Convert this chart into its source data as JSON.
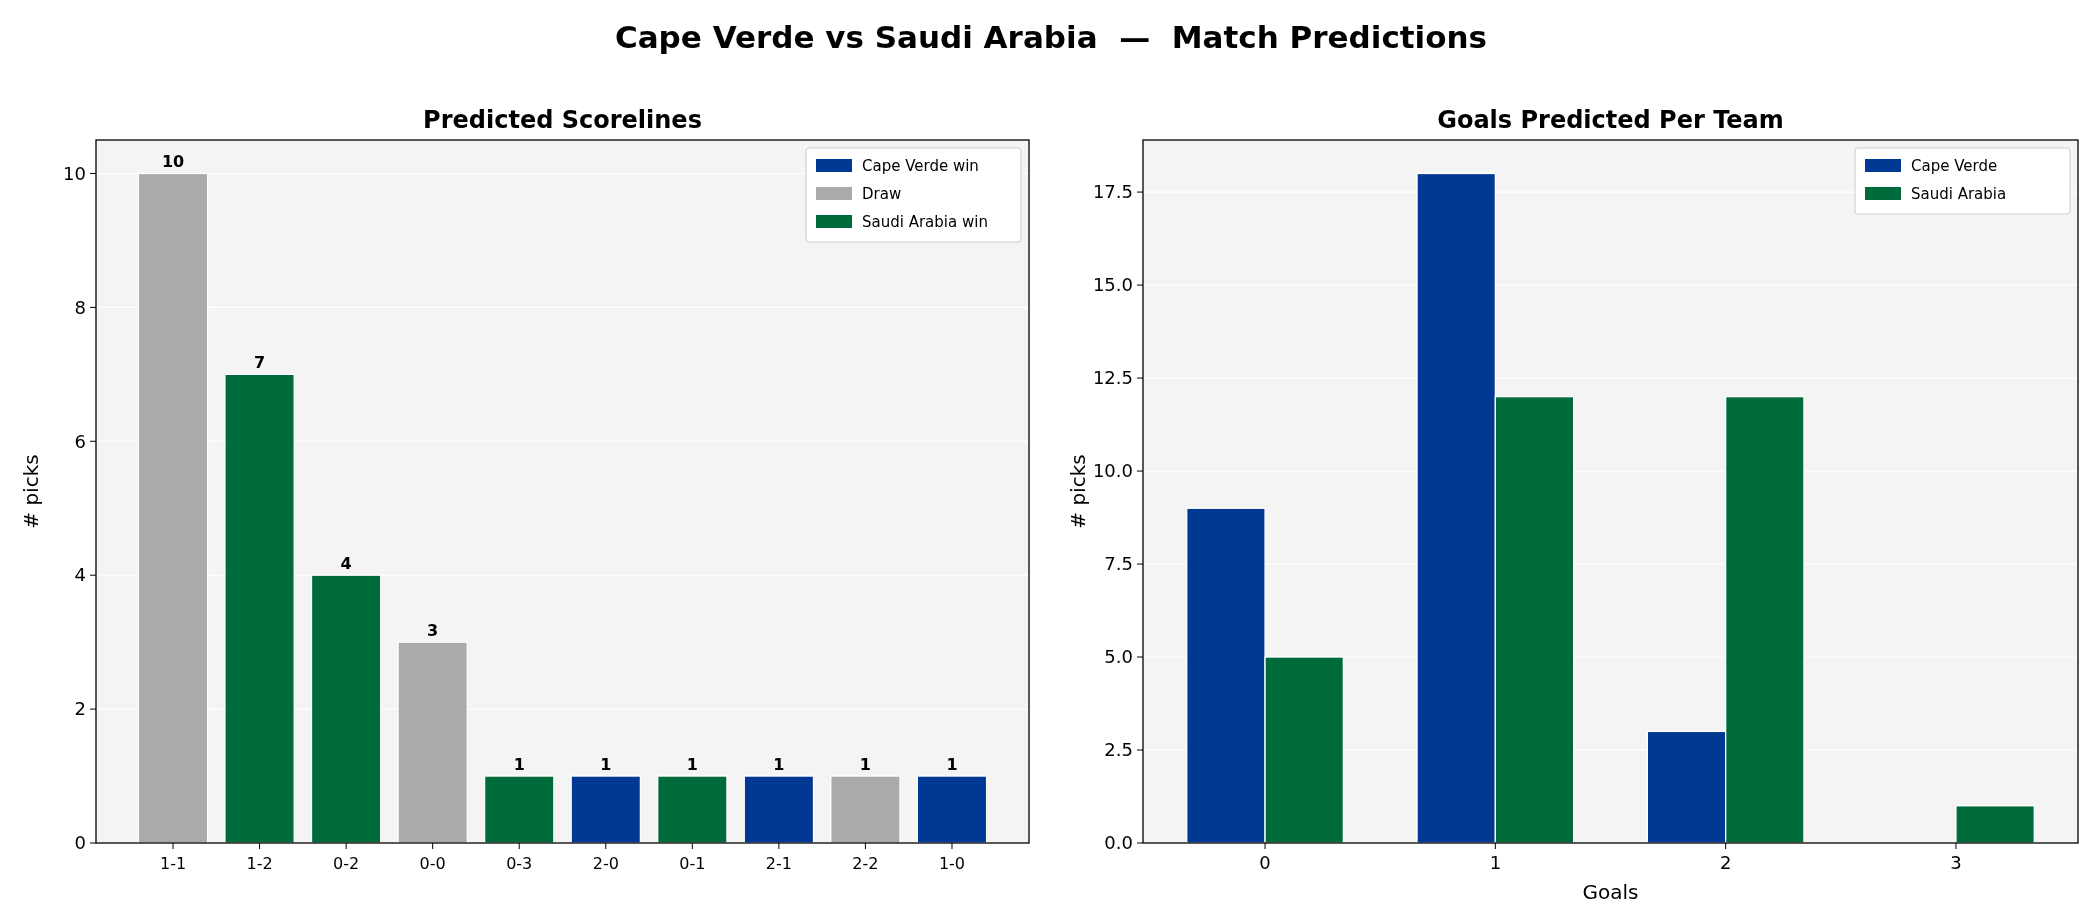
{
  "chart_data": [
    {
      "type": "bar",
      "annotations": [
        "Cape Verde vs Saudi Arabia  —  Match Predictions"
      ],
      "title": "Predicted Scorelines",
      "ylabel": "# picks",
      "categories": [
        "1-1",
        "1-2",
        "0-2",
        "0-0",
        "0-3",
        "2-0",
        "0-1",
        "2-1",
        "2-2",
        "1-0"
      ],
      "stacked": true,
      "series": [
        {
          "name": "Cape Verde win",
          "color": "#003893",
          "values": [
            null,
            null,
            null,
            null,
            null,
            1,
            null,
            1,
            null,
            1
          ]
        },
        {
          "name": "Draw",
          "color": "#aaaaaa",
          "values": [
            10,
            null,
            null,
            3,
            null,
            null,
            null,
            null,
            1,
            null
          ]
        },
        {
          "name": "Saudi Arabia win",
          "color": "#006b3a",
          "values": [
            null,
            7,
            4,
            null,
            1,
            null,
            1,
            null,
            null,
            null
          ]
        }
      ],
      "ylim": [
        0,
        10.5
      ],
      "yticks": [
        0,
        2,
        4,
        6,
        8,
        10
      ],
      "grid": "y",
      "legend": "top right",
      "data_labels": true
    },
    {
      "type": "bar",
      "title": "Goals Predicted Per Team",
      "xlabel": "Goals",
      "ylabel": "# picks",
      "categories": [
        "0",
        "1",
        "2",
        "3"
      ],
      "series": [
        {
          "name": "Cape Verde",
          "color": "#003893",
          "values": [
            9,
            18,
            3,
            0
          ]
        },
        {
          "name": "Saudi Arabia",
          "color": "#006b3a",
          "values": [
            5,
            12,
            12,
            1
          ]
        }
      ],
      "ylim": [
        0,
        18.9
      ],
      "yticks": [
        {
          "value": 0,
          "label": "0.0"
        },
        {
          "value": 2.5,
          "label": "2.5"
        },
        {
          "value": 5,
          "label": "5.0"
        },
        {
          "value": 7.5,
          "label": "7.5"
        },
        {
          "value": 10,
          "label": "10.0"
        },
        {
          "value": 12.5,
          "label": "12.5"
        },
        {
          "value": 15,
          "label": "15.0"
        },
        {
          "value": 17.5,
          "label": "17.5"
        }
      ],
      "grid": "y",
      "legend": "top right"
    }
  ]
}
